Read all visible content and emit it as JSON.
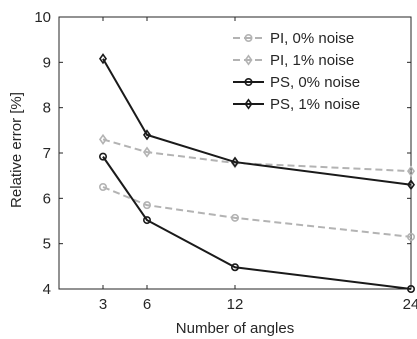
{
  "chart_data": {
    "type": "line",
    "title": "",
    "xlabel": "Number of angles",
    "ylabel": "Relative error [%]",
    "x": [
      3,
      6,
      12,
      24
    ],
    "xticks": [
      3,
      6,
      12,
      24
    ],
    "yticks": [
      4,
      5,
      6,
      7,
      8,
      9,
      10
    ],
    "xlim": [
      0,
      24
    ],
    "ylim": [
      4,
      10
    ],
    "grid": false,
    "legend_position": "top-right",
    "series": [
      {
        "name": "PI, 0% noise",
        "values": [
          6.25,
          5.85,
          5.57,
          5.15
        ],
        "color": "#b3b3b3",
        "dash": true,
        "marker": "circle"
      },
      {
        "name": "PI, 1% noise",
        "values": [
          7.3,
          7.02,
          6.78,
          6.6
        ],
        "color": "#b3b3b3",
        "dash": true,
        "marker": "diamond"
      },
      {
        "name": "PS, 0% noise",
        "values": [
          6.92,
          5.52,
          4.48,
          4.0
        ],
        "color": "#1a1a1a",
        "dash": false,
        "marker": "circle"
      },
      {
        "name": "PS, 1% noise",
        "values": [
          9.08,
          7.4,
          6.8,
          6.3
        ],
        "color": "#1a1a1a",
        "dash": false,
        "marker": "diamond"
      }
    ]
  }
}
